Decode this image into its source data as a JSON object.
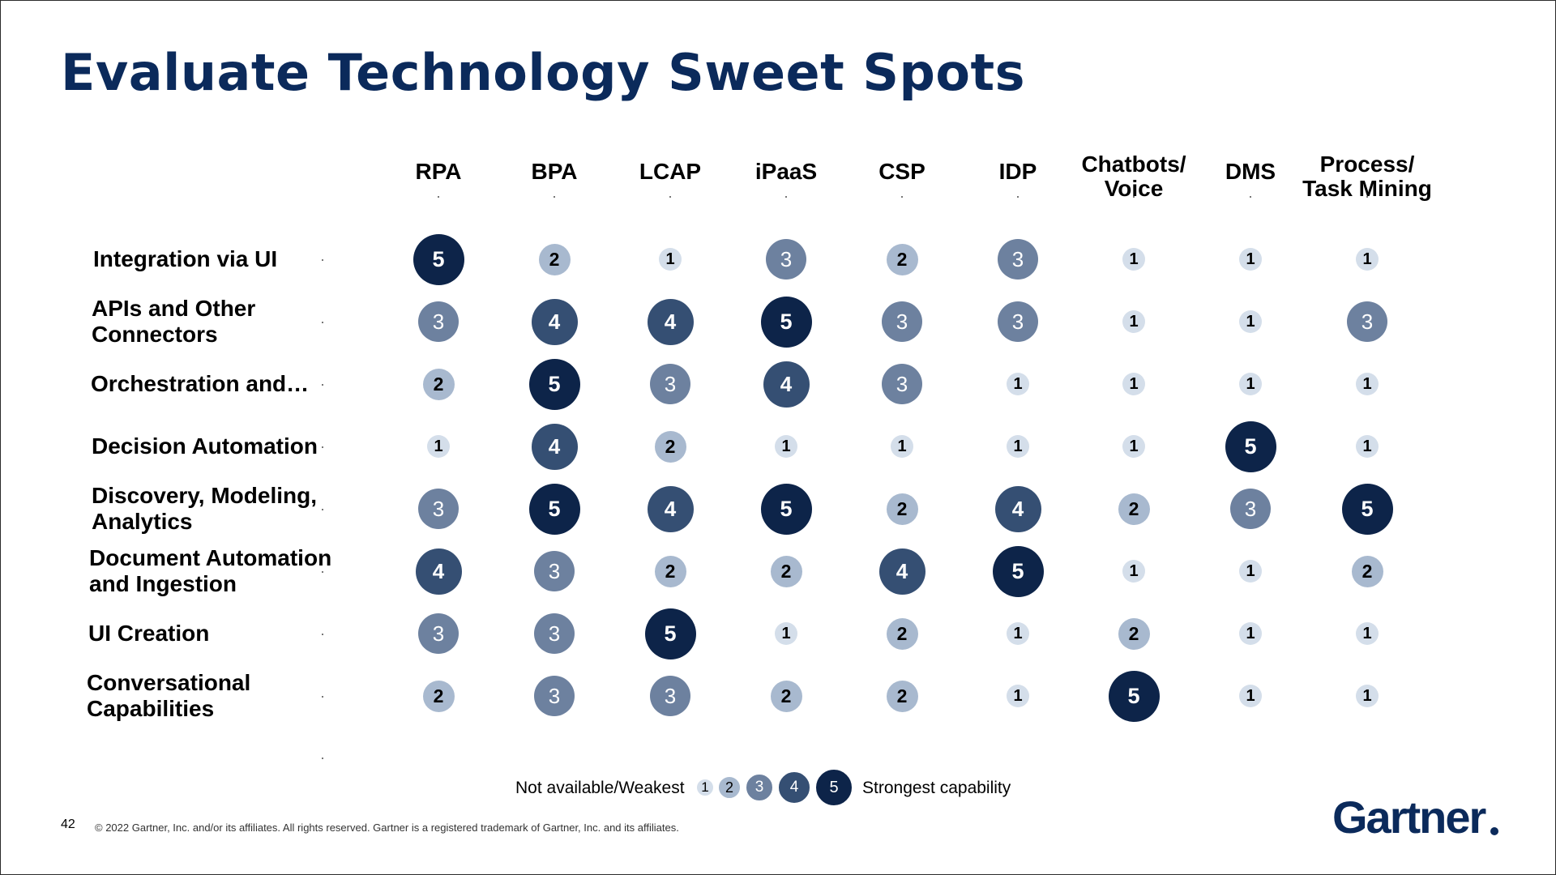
{
  "page": {
    "title": "Evaluate Technology Sweet Spots",
    "page_number": "42",
    "copyright": "© 2022 Gartner, Inc. and/or its affiliates. All rights reserved. Gartner is a registered trademark of Gartner, Inc. and its affiliates.",
    "logo_text": "Gartner"
  },
  "legend": {
    "left_label": "Not available/Weakest",
    "right_label": "Strongest capability",
    "levels": [
      "1",
      "2",
      "3",
      "4",
      "5"
    ]
  },
  "colors": {
    "title": "#0b2a5b",
    "level_1": "#d4deea",
    "level_2": "#a8b9cf",
    "level_3": "#6d819f",
    "level_4": "#354f73",
    "level_5": "#0d2449",
    "text_dark": "#000000",
    "text_light": "#ffffff"
  },
  "chart_data": {
    "type": "heatmap",
    "columns": [
      [
        "RPA"
      ],
      [
        "BPA"
      ],
      [
        "LCAP"
      ],
      [
        "iPaaS"
      ],
      [
        "CSP"
      ],
      [
        "IDP"
      ],
      [
        "Chatbots/",
        "Voice"
      ],
      [
        "DMS"
      ],
      [
        "Process/",
        "Task Mining"
      ]
    ],
    "rows": [
      {
        "label": [
          "Integration via UI"
        ],
        "values": [
          5,
          2,
          1,
          3,
          2,
          3,
          1,
          1,
          1
        ]
      },
      {
        "label": [
          "APIs and Other",
          "Connectors"
        ],
        "values": [
          3,
          4,
          4,
          5,
          3,
          3,
          1,
          1,
          3
        ]
      },
      {
        "label": [
          "Orchestration and…"
        ],
        "values": [
          2,
          5,
          3,
          4,
          3,
          1,
          1,
          1,
          1
        ]
      },
      {
        "label": [
          "Decision Automation"
        ],
        "values": [
          1,
          4,
          2,
          1,
          1,
          1,
          1,
          5,
          1
        ]
      },
      {
        "label": [
          "Discovery, Modeling,",
          "Analytics"
        ],
        "values": [
          3,
          5,
          4,
          5,
          2,
          4,
          2,
          3,
          5
        ]
      },
      {
        "label": [
          "Document Automation",
          "and Ingestion"
        ],
        "values": [
          4,
          3,
          2,
          2,
          4,
          5,
          1,
          1,
          2
        ]
      },
      {
        "label": [
          "UI Creation"
        ],
        "values": [
          3,
          3,
          5,
          1,
          2,
          1,
          2,
          1,
          1
        ]
      },
      {
        "label": [
          "Conversational",
          "Capabilities"
        ],
        "values": [
          2,
          3,
          3,
          2,
          2,
          1,
          5,
          1,
          1
        ]
      }
    ],
    "scale": [
      1,
      5
    ]
  }
}
